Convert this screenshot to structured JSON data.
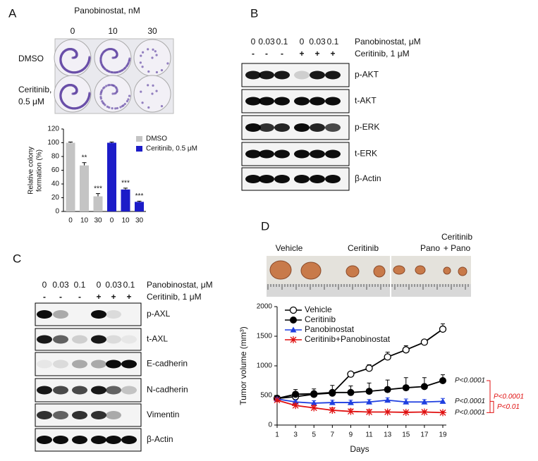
{
  "panel_a": {
    "label": "A",
    "treatment": "Panobinostat, nM",
    "doses": [
      "0",
      "10",
      "30"
    ],
    "rows": [
      [
        "DMSO"
      ],
      [
        "Ceritinib,",
        "0.5 μM"
      ]
    ]
  },
  "panel_b": {
    "label": "B",
    "doses": [
      "0",
      "0.03",
      "0.1",
      "0",
      "0.03",
      "0.1"
    ],
    "treatment": "Panobinostat, μM",
    "ceritinib": [
      "-",
      "-",
      "-",
      "+",
      "+",
      "+"
    ],
    "ceritinib_label": "Ceritinib, 1 μM",
    "blots": [
      "p-AKT",
      "t-AKT",
      "p-ERK",
      "t-ERK",
      "β-Actin"
    ]
  },
  "panel_c": {
    "label": "C",
    "doses": [
      "0",
      "0.03",
      "0.1",
      "0",
      "0.03",
      "0.1"
    ],
    "treatment": "Panobinostat, μM",
    "ceritinib": [
      "-",
      "-",
      "-",
      "+",
      "+",
      "+"
    ],
    "ceritinib_label": "Ceritinib, 1 μM",
    "blots": [
      "p-AXL",
      "t-AXL",
      "E-cadherin",
      "N-cadherin",
      "Vimentin",
      "β-Actin"
    ]
  },
  "panel_d": {
    "label": "D",
    "groups": [
      "Vehicle",
      "Ceritinib",
      "Pano"
    ],
    "combo_group": [
      "Ceritinib",
      "+ Pano"
    ]
  },
  "chart_data": [
    {
      "type": "bar",
      "ylabel": [
        "Relative colony",
        "formation (%)"
      ],
      "categories": [
        "0",
        "10",
        "30",
        "0",
        "10",
        "30"
      ],
      "series": [
        {
          "name": "DMSO",
          "color": "#c4c4c4",
          "values": [
            100,
            67,
            22,
            null,
            null,
            null
          ],
          "errors": [
            1,
            4,
            4,
            null,
            null,
            null
          ],
          "significance": [
            null,
            "**",
            "***",
            null,
            null,
            null
          ]
        },
        {
          "name": "Ceritinib, 0.5 μM",
          "color": "#1c1cc8",
          "values": [
            null,
            null,
            null,
            100,
            32,
            14
          ],
          "errors": [
            null,
            null,
            null,
            1,
            2,
            1
          ],
          "significance": [
            null,
            null,
            null,
            null,
            "***",
            "***"
          ]
        }
      ],
      "ylim": [
        0,
        120
      ],
      "yticks": [
        0,
        20,
        40,
        60,
        80,
        100,
        120
      ]
    },
    {
      "type": "line",
      "xlabel": "Days",
      "ylabel": "Tumor volume  (mm³)",
      "x": [
        1,
        3,
        5,
        7,
        9,
        11,
        13,
        15,
        17,
        19
      ],
      "series": [
        {
          "name": "Vehicle",
          "color": "#000000",
          "marker": "open-circle",
          "values": [
            450,
            480,
            520,
            540,
            860,
            960,
            1150,
            1270,
            1400,
            1620
          ],
          "errors": [
            30,
            60,
            50,
            50,
            30,
            60,
            80,
            70,
            30,
            90
          ],
          "p_value": null
        },
        {
          "name": "Ceritinib",
          "color": "#000000",
          "marker": "circle",
          "values": [
            450,
            520,
            530,
            550,
            550,
            570,
            600,
            630,
            650,
            750
          ],
          "errors": [
            40,
            80,
            80,
            120,
            110,
            140,
            160,
            170,
            150,
            100
          ],
          "p_value": "P<0.0001"
        },
        {
          "name": "Panobinostat",
          "color": "#1f3fe0",
          "marker": "triangle",
          "values": [
            440,
            390,
            370,
            380,
            380,
            390,
            420,
            390,
            390,
            400
          ],
          "errors": [
            20,
            30,
            40,
            40,
            40,
            40,
            40,
            50,
            40,
            50
          ],
          "p_value": "P<0.0001"
        },
        {
          "name": "Ceritinib+Panobinostat",
          "color": "#e01010",
          "marker": "asterisk",
          "values": [
            420,
            330,
            290,
            250,
            230,
            220,
            220,
            215,
            220,
            210
          ],
          "errors": [
            20,
            30,
            40,
            40,
            40,
            40,
            20,
            20,
            20,
            20
          ],
          "p_value": "P<0.0001"
        }
      ],
      "brackets": [
        "P<0.0001",
        "P<0.01"
      ],
      "xlim": [
        1,
        19
      ],
      "xticks": [
        1,
        3,
        5,
        7,
        9,
        11,
        13,
        15,
        17,
        19
      ],
      "ylim": [
        0,
        2000
      ],
      "yticks": [
        0,
        500,
        1000,
        1500,
        2000
      ]
    }
  ]
}
